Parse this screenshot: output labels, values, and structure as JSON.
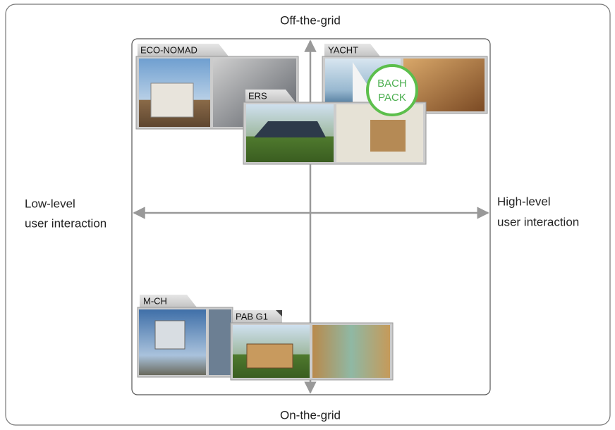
{
  "axes": {
    "top": "Off-the-grid",
    "bottom": "On-the-grid",
    "left": [
      "Low-level",
      "user interaction"
    ],
    "right": [
      "High-level",
      "user interaction"
    ]
  },
  "cards": [
    {
      "label": "ECO-NOMAD"
    },
    {
      "label": "YACHT"
    },
    {
      "label": "ERS"
    },
    {
      "label": "M-CH"
    },
    {
      "label": "PAB G1"
    }
  ],
  "badge": [
    "BACH",
    "PACK"
  ]
}
